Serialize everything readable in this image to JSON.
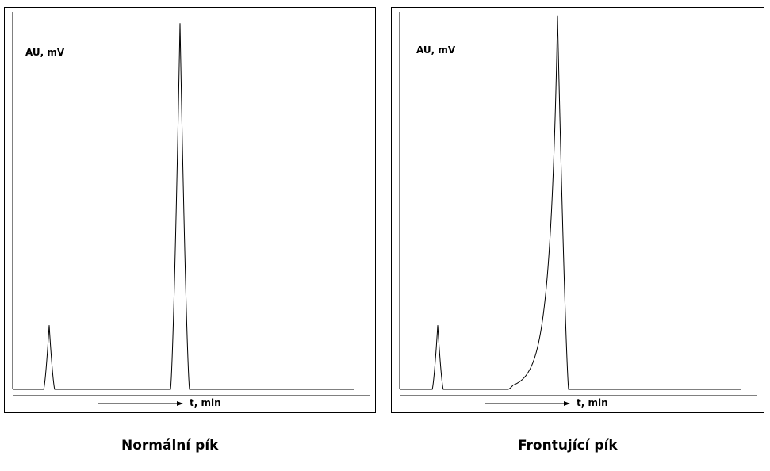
{
  "chart_data": [
    {
      "type": "line",
      "caption": "Normální pík",
      "ylabel": "AU, mV",
      "xlabel": "t, min",
      "series": [
        {
          "peaks": [
            {
              "center": 56,
              "height": 0.17,
              "shape": "symmetric"
            },
            {
              "center": 221,
              "height": 0.97,
              "shape": "symmetric"
            }
          ]
        }
      ]
    },
    {
      "type": "line",
      "caption": "Frontující pík",
      "ylabel": "AU, mV",
      "xlabel": "t, min",
      "series": [
        {
          "peaks": [
            {
              "center": 58,
              "height": 0.17,
              "shape": "symmetric"
            },
            {
              "center": 209,
              "height": 0.99,
              "shape": "fronting"
            }
          ]
        }
      ]
    }
  ],
  "style": {
    "line_color": "#000000",
    "background": "#ffffff"
  }
}
